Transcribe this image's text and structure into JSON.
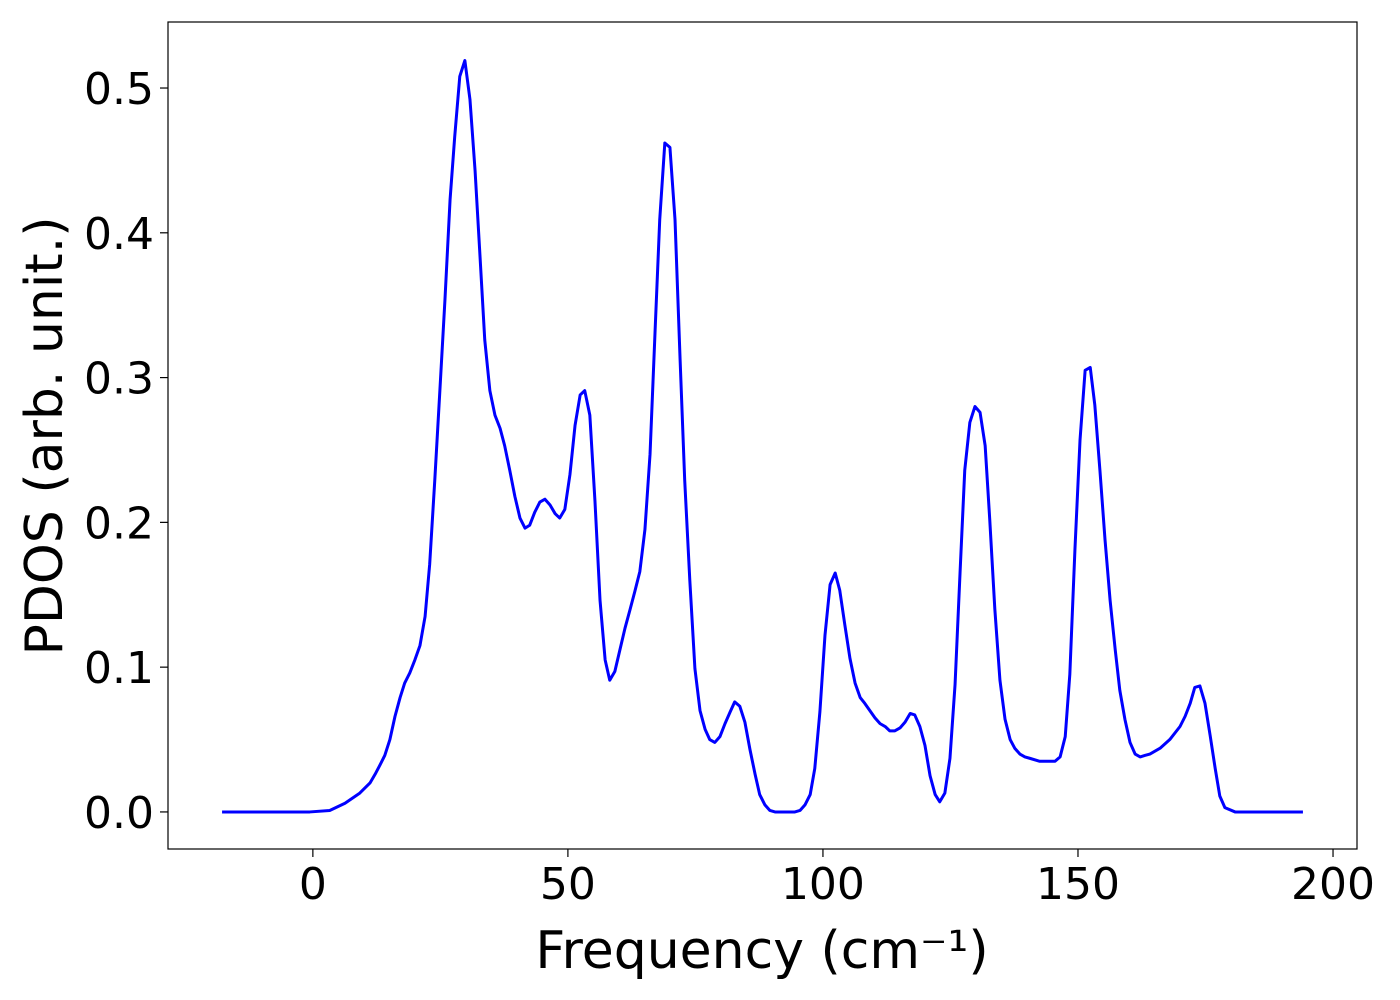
{
  "chart_data": {
    "type": "line",
    "xlabel": "Frequency (cm⁻¹)",
    "ylabel": "PDOS (arb. unit.)",
    "xlim": [
      -28.4,
      204.7
    ],
    "ylim": [
      -0.0256,
      0.5456
    ],
    "xticks": [
      0,
      50,
      100,
      150,
      200
    ],
    "yticks": [
      {
        "value": 0,
        "label": "0.0"
      },
      0.1,
      0.2,
      0.3,
      0.4,
      0.5
    ],
    "series": [
      {
        "color": "#0000ff",
        "x": [
          -17.8,
          -0.6,
          3.3,
          6.3,
          9.2,
          11.2,
          12.2,
          13.1,
          14.1,
          15.1,
          16.1,
          17.1,
          18.0,
          19.0,
          20.0,
          21.0,
          22.0,
          22.9,
          23.9,
          24.9,
          25.9,
          26.9,
          27.8,
          28.8,
          29.8,
          30.8,
          31.8,
          32.7,
          33.7,
          34.7,
          35.7,
          36.7,
          37.6,
          38.6,
          39.6,
          40.6,
          41.6,
          42.5,
          43.5,
          44.5,
          45.5,
          46.5,
          47.5,
          48.4,
          49.4,
          50.4,
          51.4,
          52.4,
          53.3,
          54.3,
          55.3,
          56.3,
          57.3,
          58.2,
          59.2,
          60.2,
          61.2,
          62.2,
          63.1,
          64.1,
          65.1,
          66.1,
          67.1,
          68.0,
          69.0,
          70.0,
          71.0,
          72.0,
          72.9,
          73.9,
          74.9,
          75.9,
          76.9,
          77.8,
          78.8,
          79.8,
          80.8,
          81.8,
          82.7,
          83.7,
          84.7,
          85.7,
          86.7,
          87.6,
          88.6,
          89.6,
          90.6,
          92.5,
          94.5,
          95.5,
          96.5,
          97.5,
          98.4,
          99.4,
          100.4,
          101.4,
          102.4,
          103.3,
          104.3,
          105.3,
          106.3,
          107.3,
          108.2,
          109.2,
          110.2,
          111.2,
          112.2,
          113.1,
          114.1,
          115.1,
          116.1,
          117.1,
          118.0,
          119.0,
          120.0,
          121.0,
          122.0,
          122.9,
          123.9,
          124.9,
          125.9,
          126.9,
          127.8,
          128.8,
          129.8,
          130.8,
          131.8,
          132.7,
          133.7,
          134.7,
          135.7,
          136.7,
          137.6,
          138.6,
          139.6,
          140.6,
          142.5,
          144.5,
          145.5,
          146.5,
          147.5,
          148.4,
          149.4,
          150.4,
          151.4,
          152.4,
          153.3,
          154.3,
          155.3,
          156.3,
          157.3,
          158.2,
          159.2,
          160.2,
          161.2,
          162.2,
          163.1,
          164.1,
          166.1,
          168.0,
          170.0,
          171.0,
          172.0,
          172.9,
          173.9,
          174.9,
          175.9,
          176.9,
          177.8,
          178.8,
          180.8,
          185.7,
          194.1
        ],
        "values": [
          0,
          0,
          0.001,
          0.006,
          0.013,
          0.02,
          0.026,
          0.032,
          0.039,
          0.05,
          0.066,
          0.079,
          0.089,
          0.096,
          0.105,
          0.115,
          0.135,
          0.171,
          0.229,
          0.291,
          0.354,
          0.423,
          0.466,
          0.508,
          0.519,
          0.492,
          0.443,
          0.388,
          0.326,
          0.291,
          0.274,
          0.265,
          0.253,
          0.236,
          0.218,
          0.203,
          0.196,
          0.198,
          0.207,
          0.214,
          0.216,
          0.212,
          0.206,
          0.203,
          0.209,
          0.233,
          0.267,
          0.288,
          0.291,
          0.274,
          0.215,
          0.146,
          0.105,
          0.091,
          0.097,
          0.112,
          0.127,
          0.14,
          0.152,
          0.166,
          0.195,
          0.247,
          0.333,
          0.409,
          0.462,
          0.459,
          0.409,
          0.312,
          0.229,
          0.16,
          0.099,
          0.07,
          0.057,
          0.05,
          0.048,
          0.052,
          0.061,
          0.069,
          0.076,
          0.073,
          0.062,
          0.043,
          0.026,
          0.012,
          0.005,
          0.001,
          0,
          0,
          0,
          0.001,
          0.005,
          0.012,
          0.03,
          0.069,
          0.122,
          0.157,
          0.165,
          0.153,
          0.129,
          0.106,
          0.089,
          0.079,
          0.075,
          0.07,
          0.065,
          0.061,
          0.059,
          0.056,
          0.056,
          0.058,
          0.062,
          0.068,
          0.067,
          0.059,
          0.046,
          0.025,
          0.012,
          0.007,
          0.013,
          0.037,
          0.088,
          0.167,
          0.236,
          0.269,
          0.28,
          0.276,
          0.253,
          0.202,
          0.14,
          0.091,
          0.064,
          0.05,
          0.044,
          0.04,
          0.038,
          0.037,
          0.035,
          0.035,
          0.035,
          0.038,
          0.052,
          0.095,
          0.181,
          0.257,
          0.305,
          0.307,
          0.281,
          0.236,
          0.188,
          0.146,
          0.112,
          0.084,
          0.064,
          0.048,
          0.04,
          0.038,
          0.039,
          0.04,
          0.044,
          0.05,
          0.059,
          0.066,
          0.075,
          0.086,
          0.087,
          0.075,
          0.053,
          0.03,
          0.011,
          0.003,
          0,
          0,
          0
        ]
      }
    ]
  }
}
